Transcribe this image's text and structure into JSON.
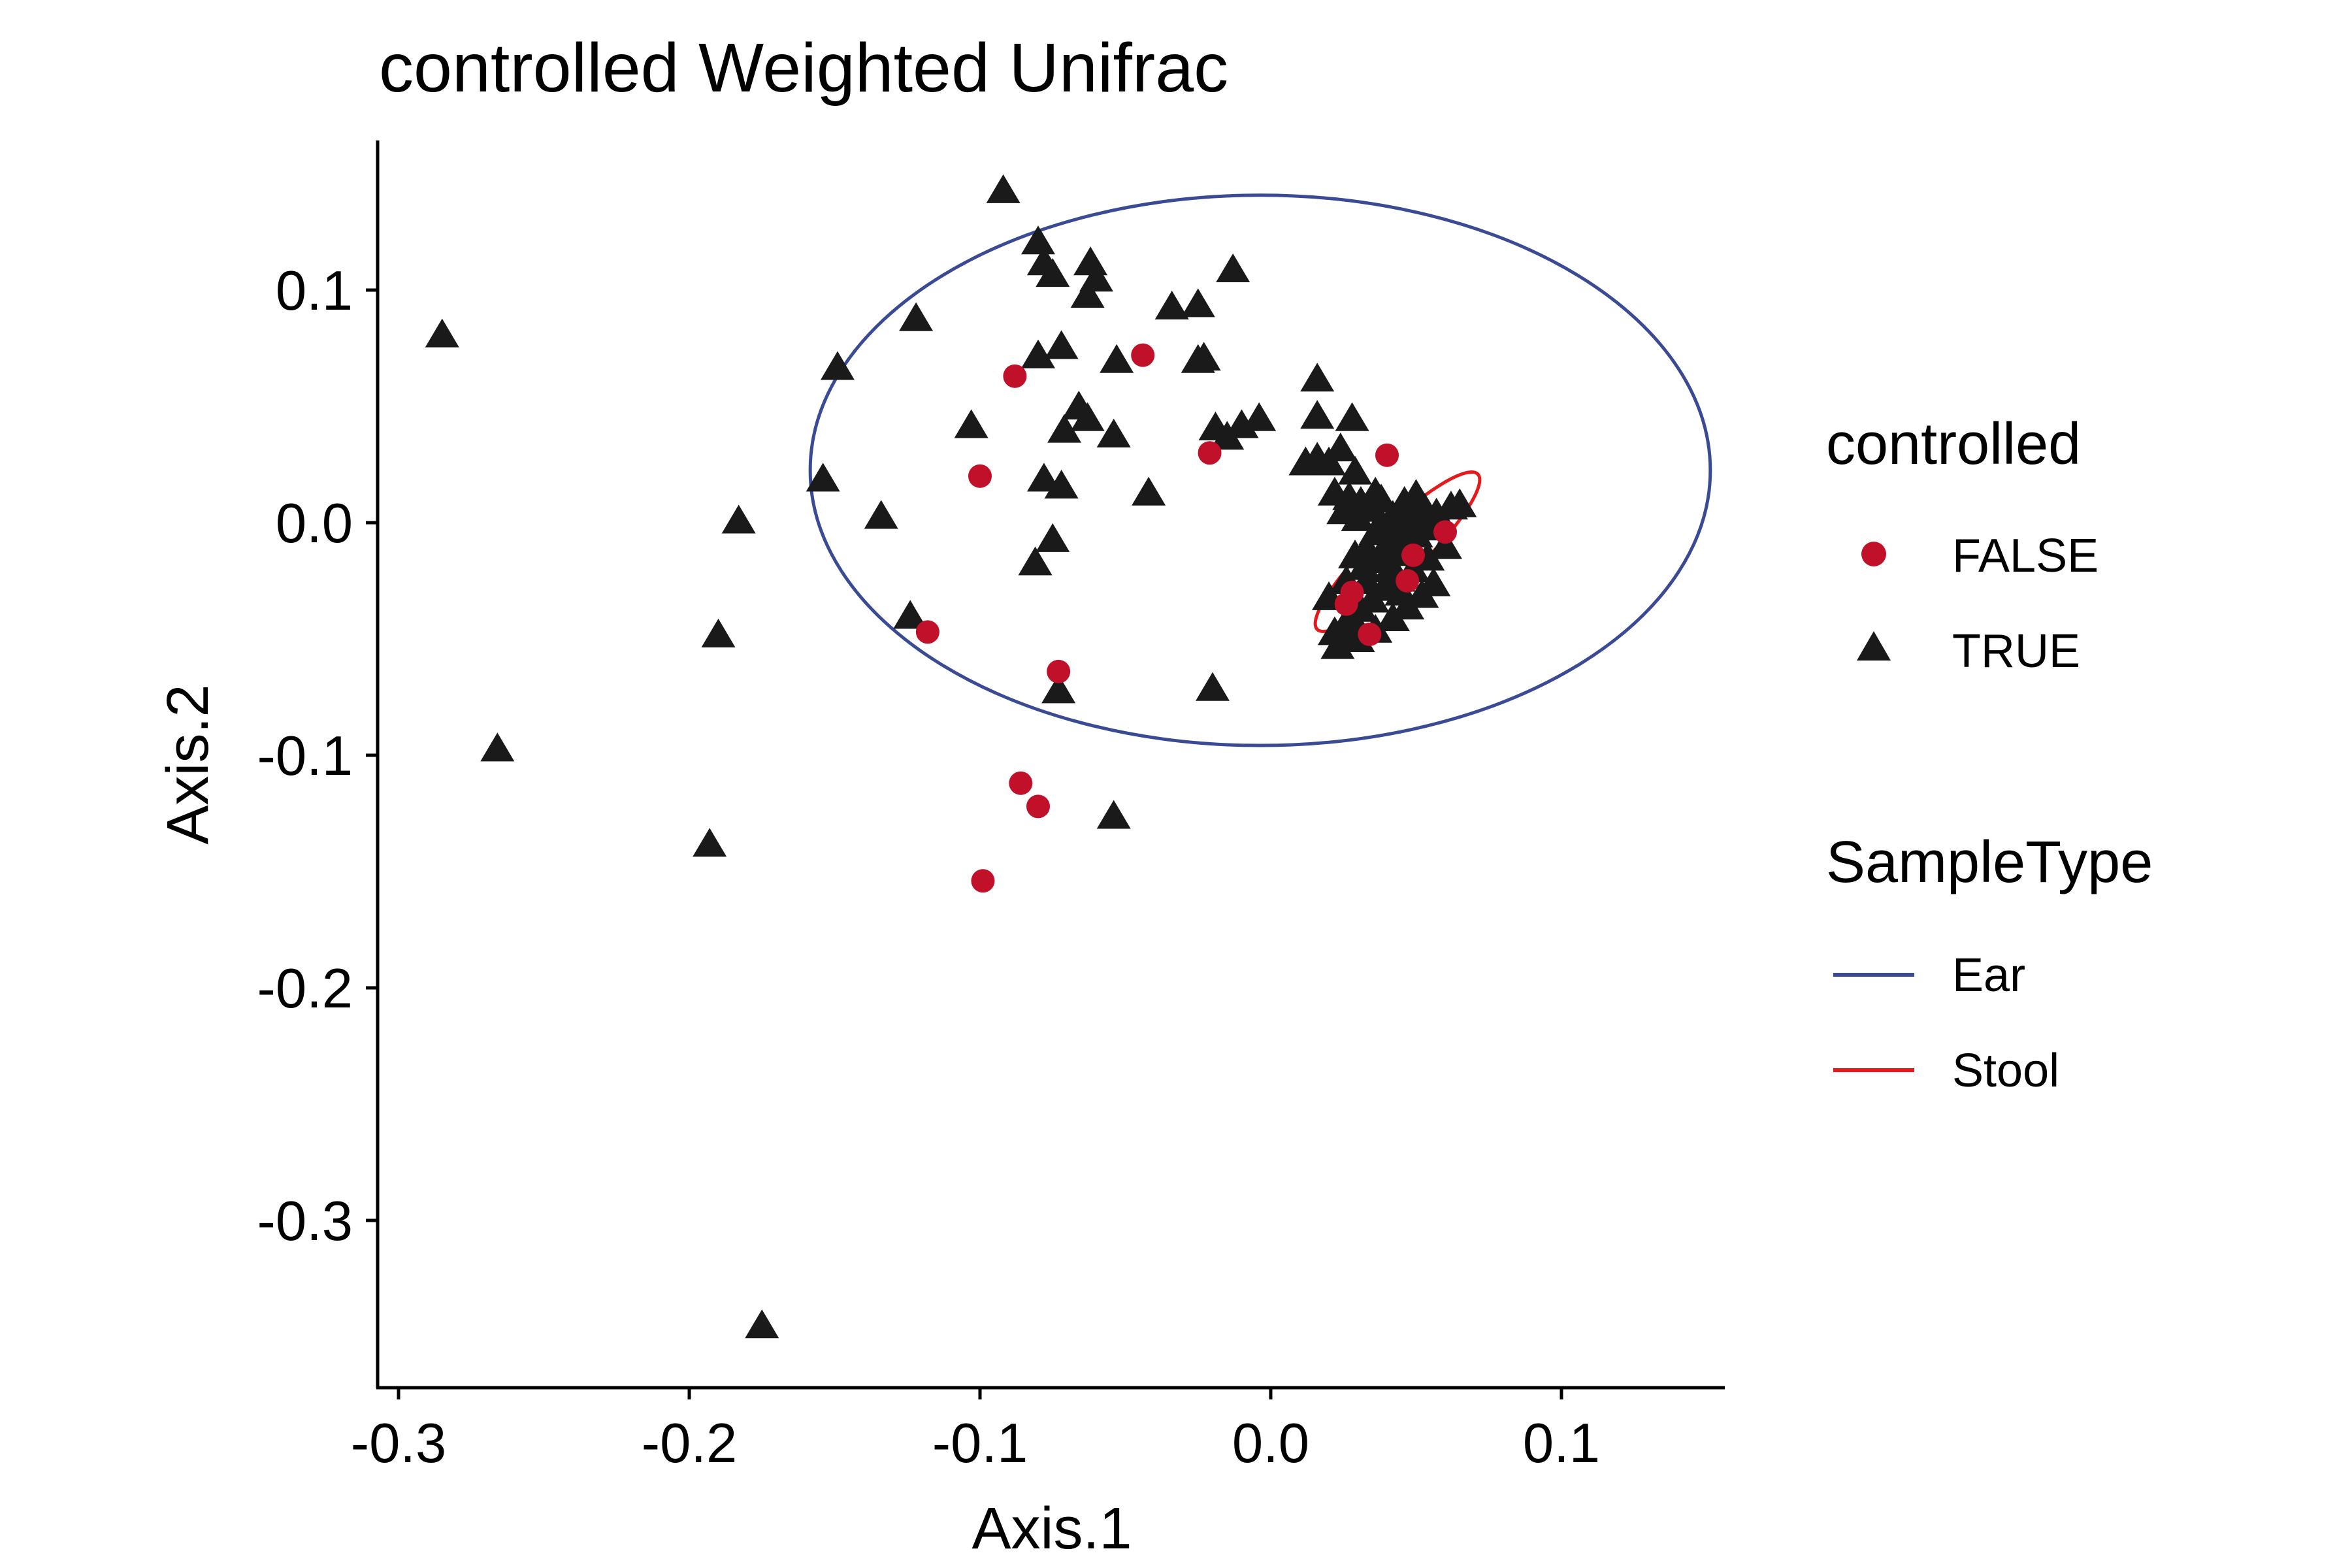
{
  "chart_data": {
    "type": "scatter",
    "title": "controlled Weighted Unifrac",
    "xlabel": "Axis.1",
    "ylabel": "Axis.2",
    "xlim": [
      -0.305,
      0.155
    ],
    "ylim": [
      -0.372,
      0.162
    ],
    "xticks": [
      -0.3,
      -0.2,
      -0.1,
      0.0,
      0.1
    ],
    "xtick_labels": [
      "-0.3",
      "-0.2",
      "-0.1",
      "0.0",
      "0.1"
    ],
    "yticks": [
      0.1,
      0.0,
      -0.1,
      -0.2,
      -0.3
    ],
    "ytick_labels": [
      "0.1",
      "0.0",
      "-0.1",
      "-0.2",
      "-0.3"
    ],
    "grid": false,
    "legend_position": "right",
    "legends": [
      {
        "title": "controlled",
        "entries": [
          {
            "label": "FALSE",
            "shape": "circle",
            "color": "#C0102A"
          },
          {
            "label": "TRUE",
            "shape": "triangle",
            "color": "#1A1A1A"
          }
        ]
      },
      {
        "title": "SampleType",
        "entries": [
          {
            "label": "Ear",
            "shape": "line",
            "color": "#3A4A94"
          },
          {
            "label": "Stool",
            "shape": "line",
            "color": "#E41A1C"
          }
        ]
      }
    ],
    "ellipses": [
      {
        "name": "Ear",
        "color": "#3A4A94",
        "cx": -0.0036,
        "cy": 0.0225,
        "rx": 0.1548,
        "ry": 0.1183,
        "angle_deg": 0
      },
      {
        "name": "Stool",
        "color": "#E41A1C",
        "cx": 0.0436,
        "cy": -0.0125,
        "rx": 0.0384,
        "ry": 0.0109,
        "angle_deg": 44
      }
    ],
    "series": [
      {
        "name": "FALSE",
        "shape": "circle",
        "color": "#C0102A",
        "points": [
          [
            -0.088,
            0.063
          ],
          [
            -0.044,
            0.072
          ],
          [
            -0.1,
            0.02
          ],
          [
            -0.021,
            0.03
          ],
          [
            -0.118,
            -0.047
          ],
          [
            -0.073,
            -0.064
          ],
          [
            -0.086,
            -0.112
          ],
          [
            -0.08,
            -0.122
          ],
          [
            -0.099,
            -0.154
          ],
          [
            0.04,
            0.029
          ],
          [
            0.049,
            -0.014
          ],
          [
            0.047,
            -0.025
          ],
          [
            0.034,
            -0.048
          ],
          [
            0.028,
            -0.03
          ],
          [
            0.06,
            -0.004
          ],
          [
            0.026,
            -0.035
          ]
        ]
      },
      {
        "name": "TRUE",
        "shape": "triangle",
        "color": "#1A1A1A",
        "points": [
          [
            -0.285,
            0.081
          ],
          [
            -0.266,
            -0.097
          ],
          [
            -0.183,
            0.001
          ],
          [
            -0.19,
            -0.048
          ],
          [
            -0.193,
            -0.138
          ],
          [
            -0.175,
            -0.345
          ],
          [
            -0.154,
            0.019
          ],
          [
            -0.149,
            0.067
          ],
          [
            -0.134,
            0.003
          ],
          [
            -0.122,
            0.088
          ],
          [
            -0.124,
            -0.04
          ],
          [
            -0.103,
            0.042
          ],
          [
            -0.092,
            0.143
          ],
          [
            -0.08,
            0.121
          ],
          [
            -0.078,
            0.112
          ],
          [
            -0.075,
            0.107
          ],
          [
            -0.08,
            0.072
          ],
          [
            -0.072,
            0.076
          ],
          [
            -0.066,
            0.05
          ],
          [
            -0.063,
            0.045
          ],
          [
            -0.071,
            0.04
          ],
          [
            -0.054,
            0.038
          ],
          [
            -0.078,
            0.019
          ],
          [
            -0.072,
            0.016
          ],
          [
            -0.075,
            -0.007
          ],
          [
            -0.081,
            -0.017
          ],
          [
            -0.073,
            -0.072
          ],
          [
            -0.054,
            -0.126
          ],
          [
            -0.042,
            0.013
          ],
          [
            -0.062,
            0.112
          ],
          [
            -0.06,
            0.105
          ],
          [
            -0.063,
            0.098
          ],
          [
            -0.053,
            0.07
          ],
          [
            -0.034,
            0.093
          ],
          [
            -0.025,
            0.094
          ],
          [
            -0.023,
            0.071
          ],
          [
            -0.025,
            0.07
          ],
          [
            -0.013,
            0.109
          ],
          [
            -0.019,
            0.041
          ],
          [
            -0.015,
            0.037
          ],
          [
            -0.01,
            0.042
          ],
          [
            -0.004,
            0.045
          ],
          [
            -0.02,
            -0.071
          ],
          [
            0.016,
            0.062
          ],
          [
            0.016,
            0.046
          ],
          [
            0.012,
            0.026
          ],
          [
            0.028,
            0.045
          ],
          [
            0.016,
            0.028
          ],
          [
            0.02,
            0.026
          ],
          [
            0.024,
            0.032
          ],
          [
            0.029,
            0.022
          ],
          [
            0.022,
            0.013
          ],
          [
            0.027,
            0.011
          ],
          [
            0.031,
            0.009
          ],
          [
            0.025,
            0.005
          ],
          [
            0.03,
            0.002
          ],
          [
            0.034,
            0.006
          ],
          [
            0.036,
            0.013
          ],
          [
            0.038,
            0.01
          ],
          [
            0.042,
            0.003
          ],
          [
            0.046,
            0.009
          ],
          [
            0.05,
            0.012
          ],
          [
            0.053,
            0.006
          ],
          [
            0.047,
            -0.001
          ],
          [
            0.044,
            -0.006
          ],
          [
            0.04,
            -0.009
          ],
          [
            0.036,
            -0.004
          ],
          [
            0.033,
            -0.011
          ],
          [
            0.029,
            -0.014
          ],
          [
            0.032,
            -0.019
          ],
          [
            0.037,
            -0.016
          ],
          [
            0.042,
            -0.013
          ],
          [
            0.046,
            -0.01
          ],
          [
            0.05,
            -0.005
          ],
          [
            0.055,
            -0.002
          ],
          [
            0.058,
            0.001
          ],
          [
            0.062,
            0.007
          ],
          [
            0.065,
            0.008
          ],
          [
            0.06,
            -0.01
          ],
          [
            0.054,
            -0.015
          ],
          [
            0.049,
            -0.02
          ],
          [
            0.044,
            -0.024
          ],
          [
            0.039,
            -0.028
          ],
          [
            0.035,
            -0.033
          ],
          [
            0.031,
            -0.037
          ],
          [
            0.028,
            -0.041
          ],
          [
            0.025,
            -0.045
          ],
          [
            0.03,
            -0.05
          ],
          [
            0.036,
            -0.046
          ],
          [
            0.042,
            -0.041
          ],
          [
            0.047,
            -0.036
          ],
          [
            0.052,
            -0.031
          ],
          [
            0.056,
            -0.026
          ],
          [
            0.02,
            -0.032
          ],
          [
            0.022,
            -0.047
          ],
          [
            0.023,
            -0.053
          ],
          [
            0.026,
            -0.025
          ],
          [
            0.038,
            0.0
          ],
          [
            0.041,
            -0.02
          ],
          [
            0.045,
            -0.03
          ],
          [
            0.033,
            -0.025
          ],
          [
            0.051,
            0.0
          ],
          [
            0.057,
            0.004
          ],
          [
            0.048,
            0.003
          ]
        ]
      }
    ]
  }
}
